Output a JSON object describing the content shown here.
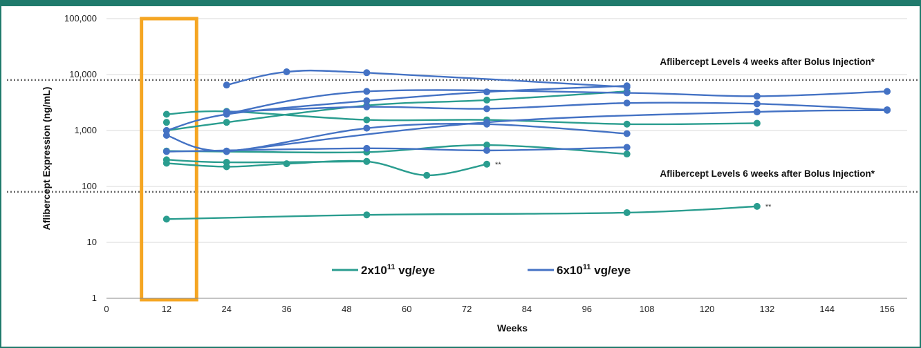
{
  "chart_data": {
    "type": "line",
    "xlabel": "Weeks",
    "ylabel": "Aflibercept Expression (ng/mL)",
    "yscale": "log",
    "xlim": [
      0,
      160
    ],
    "ylim": [
      1,
      100000
    ],
    "xticks": [
      0,
      12,
      24,
      36,
      48,
      60,
      72,
      84,
      96,
      108,
      120,
      132,
      144,
      156
    ],
    "yticks": [
      {
        "value": 1,
        "label": "1"
      },
      {
        "value": 10,
        "label": "10"
      },
      {
        "value": 100,
        "label": "100"
      },
      {
        "value": 1000,
        "label": "1,000"
      },
      {
        "value": 10000,
        "label": "10,000"
      },
      {
        "value": 100000,
        "label": "100,000"
      }
    ],
    "grid": "horizontal",
    "highlight_box": {
      "x_range": [
        7,
        18
      ],
      "color": "#f5a623"
    },
    "reference_lines": [
      {
        "value": 8000,
        "label": "Aflibercept Levels 4 weeks after Bolus Injection*"
      },
      {
        "value": 80,
        "label": "Aflibercept Levels 6 weeks after Bolus Injection*"
      }
    ],
    "legend": {
      "position": "bottom-center",
      "items": [
        {
          "base": "2x10",
          "sup": "11",
          "rest": " vg/eye",
          "color": "#2a9d8f"
        },
        {
          "base": "6x10",
          "sup": "11",
          "rest": " vg/eye",
          "color": "#4472c4"
        }
      ]
    },
    "series": [
      {
        "group": "2x10^11",
        "color": "#2a9d8f",
        "points": [
          [
            12,
            1950
          ],
          [
            24,
            2200
          ],
          [
            52,
            1550
          ],
          [
            76,
            1550
          ],
          [
            104,
            1300
          ],
          [
            130,
            1350
          ]
        ]
      },
      {
        "group": "2x10^11",
        "color": "#2a9d8f",
        "points": [
          [
            12,
            1000
          ],
          [
            24,
            1400
          ],
          [
            52,
            2800
          ],
          [
            76,
            3500
          ],
          [
            104,
            5000
          ]
        ]
      },
      {
        "group": "2x10^11",
        "color": "#2a9d8f",
        "points": [
          [
            12,
            430
          ],
          [
            24,
            420
          ],
          [
            52,
            410
          ],
          [
            76,
            550
          ],
          [
            104,
            380
          ]
        ]
      },
      {
        "group": "2x10^11",
        "color": "#2a9d8f",
        "points": [
          [
            12,
            300
          ],
          [
            24,
            270
          ],
          [
            52,
            280
          ]
        ]
      },
      {
        "group": "2x10^11",
        "color": "#2a9d8f",
        "points": [
          [
            12,
            260
          ],
          [
            24,
            225
          ],
          [
            36,
            255
          ],
          [
            52,
            280
          ],
          [
            64,
            158
          ],
          [
            76,
            250
          ]
        ],
        "annotation": "**"
      },
      {
        "group": "2x10^11",
        "color": "#2a9d8f",
        "points": [
          [
            12,
            26
          ],
          [
            52,
            31
          ],
          [
            104,
            34
          ],
          [
            130,
            44
          ]
        ],
        "annotation": "**"
      },
      {
        "group": "2x10^11",
        "color": "#2a9d8f",
        "points": [
          [
            12,
            1400
          ]
        ]
      },
      {
        "group": "6x10^11",
        "color": "#4472c4",
        "points": [
          [
            24,
            6500
          ],
          [
            36,
            11200
          ],
          [
            52,
            10800
          ],
          [
            104,
            6000
          ]
        ]
      },
      {
        "group": "6x10^11",
        "color": "#4472c4",
        "points": [
          [
            12,
            1000
          ],
          [
            24,
            1950
          ],
          [
            52,
            3400
          ],
          [
            76,
            4900
          ],
          [
            104,
            6300
          ]
        ]
      },
      {
        "group": "6x10^11",
        "color": "#4472c4",
        "points": [
          [
            24,
            2000
          ],
          [
            52,
            5000
          ],
          [
            104,
            4700
          ],
          [
            130,
            4100
          ],
          [
            156,
            5000
          ]
        ]
      },
      {
        "group": "6x10^11",
        "color": "#4472c4",
        "points": [
          [
            24,
            2150
          ],
          [
            52,
            2650
          ],
          [
            76,
            2450
          ],
          [
            104,
            3100
          ],
          [
            130,
            3000
          ],
          [
            156,
            2350
          ]
        ]
      },
      {
        "group": "6x10^11",
        "color": "#4472c4",
        "points": [
          [
            12,
            820
          ],
          [
            24,
            430
          ],
          [
            52,
            1100
          ],
          [
            76,
            1300
          ],
          [
            104,
            880
          ]
        ]
      },
      {
        "group": "6x10^11",
        "color": "#4472c4",
        "points": [
          [
            24,
            420
          ],
          [
            76,
            1400
          ],
          [
            130,
            2150
          ],
          [
            156,
            2300
          ]
        ]
      },
      {
        "group": "6x10^11",
        "color": "#4472c4",
        "points": [
          [
            12,
            420
          ],
          [
            52,
            480
          ],
          [
            76,
            440
          ],
          [
            104,
            500
          ]
        ]
      }
    ]
  }
}
